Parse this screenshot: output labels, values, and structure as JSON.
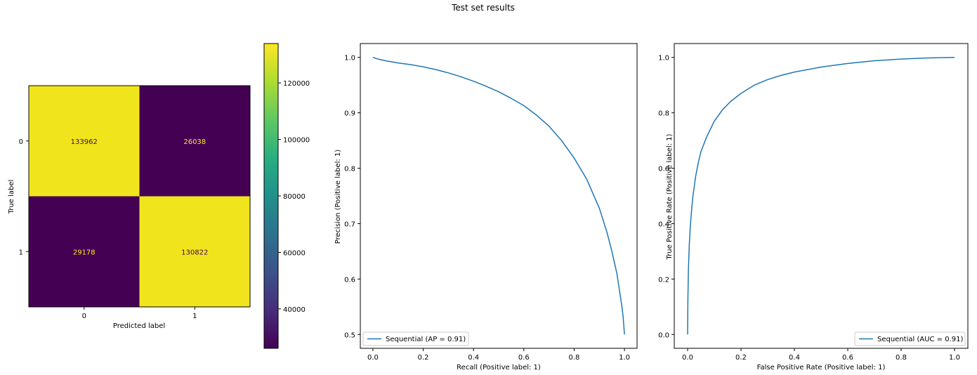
{
  "figure_title": "Test set results",
  "chart_data": [
    {
      "type": "heatmap",
      "xlabel": "Predicted label",
      "ylabel": "True label",
      "x_categories": [
        "0",
        "1"
      ],
      "y_categories": [
        "0",
        "1"
      ],
      "matrix": [
        [
          133962,
          26038
        ],
        [
          29178,
          130822
        ]
      ],
      "matrix_labels": [
        [
          "133962",
          "26038"
        ],
        [
          "29178",
          "130822"
        ]
      ],
      "colormap": "viridis",
      "colorbar": {
        "range": [
          26038,
          133962
        ],
        "ticks": [
          40000,
          60000,
          80000,
          100000,
          120000
        ],
        "tick_labels": [
          "40000",
          "60000",
          "80000",
          "100000",
          "120000"
        ]
      },
      "colors": {
        "high_cell": "#f0e51c",
        "low_cell": "#440154",
        "text_on_dark": "#fde725",
        "text_on_light": "#440154"
      }
    },
    {
      "type": "line",
      "xlabel": "Recall (Positive label: 1)",
      "ylabel": "Precision (Positive label: 1)",
      "xlim": [
        -0.05,
        1.05
      ],
      "ylim": [
        0.475,
        1.025
      ],
      "xticks": [
        0.0,
        0.2,
        0.4,
        0.6,
        0.8,
        1.0
      ],
      "xtick_labels": [
        "0.0",
        "0.2",
        "0.4",
        "0.6",
        "0.8",
        "1.0"
      ],
      "yticks": [
        0.5,
        0.6,
        0.7,
        0.8,
        0.9,
        1.0
      ],
      "ytick_labels": [
        "0.5",
        "0.6",
        "0.7",
        "0.8",
        "0.9",
        "1.0"
      ],
      "legend_position": "lower-left",
      "series": [
        {
          "name": "Sequential (AP = 0.91)",
          "color": "#1f77b4",
          "x": [
            0.0,
            0.02,
            0.05,
            0.1,
            0.15,
            0.2,
            0.25,
            0.3,
            0.35,
            0.4,
            0.45,
            0.5,
            0.55,
            0.6,
            0.65,
            0.7,
            0.75,
            0.8,
            0.85,
            0.9,
            0.93,
            0.95,
            0.97,
            0.98,
            0.99,
            0.995,
            1.0
          ],
          "y": [
            1.0,
            0.997,
            0.994,
            0.99,
            0.987,
            0.983,
            0.978,
            0.972,
            0.965,
            0.957,
            0.948,
            0.938,
            0.926,
            0.913,
            0.896,
            0.876,
            0.85,
            0.818,
            0.78,
            0.728,
            0.685,
            0.65,
            0.61,
            0.58,
            0.55,
            0.53,
            0.5
          ]
        }
      ]
    },
    {
      "type": "line",
      "xlabel": "False Positive Rate (Positive label: 1)",
      "ylabel": "True Positive Rate (Positive label: 1)",
      "xlim": [
        -0.05,
        1.05
      ],
      "ylim": [
        -0.05,
        1.05
      ],
      "xticks": [
        0.0,
        0.2,
        0.4,
        0.6,
        0.8,
        1.0
      ],
      "xtick_labels": [
        "0.0",
        "0.2",
        "0.4",
        "0.6",
        "0.8",
        "1.0"
      ],
      "yticks": [
        0.0,
        0.2,
        0.4,
        0.6,
        0.8,
        1.0
      ],
      "ytick_labels": [
        "0.0",
        "0.2",
        "0.4",
        "0.6",
        "0.8",
        "1.0"
      ],
      "legend_position": "lower-right",
      "series": [
        {
          "name": "Sequential (AUC = 0.91)",
          "color": "#1f77b4",
          "x": [
            0.0,
            0.001,
            0.003,
            0.006,
            0.01,
            0.015,
            0.02,
            0.03,
            0.04,
            0.05,
            0.07,
            0.1,
            0.13,
            0.16,
            0.2,
            0.25,
            0.3,
            0.35,
            0.4,
            0.5,
            0.6,
            0.7,
            0.8,
            0.9,
            1.0
          ],
          "y": [
            0.0,
            0.13,
            0.23,
            0.32,
            0.39,
            0.45,
            0.5,
            0.57,
            0.62,
            0.66,
            0.71,
            0.77,
            0.81,
            0.84,
            0.87,
            0.9,
            0.92,
            0.935,
            0.947,
            0.965,
            0.978,
            0.988,
            0.994,
            0.998,
            1.0
          ]
        }
      ]
    }
  ]
}
